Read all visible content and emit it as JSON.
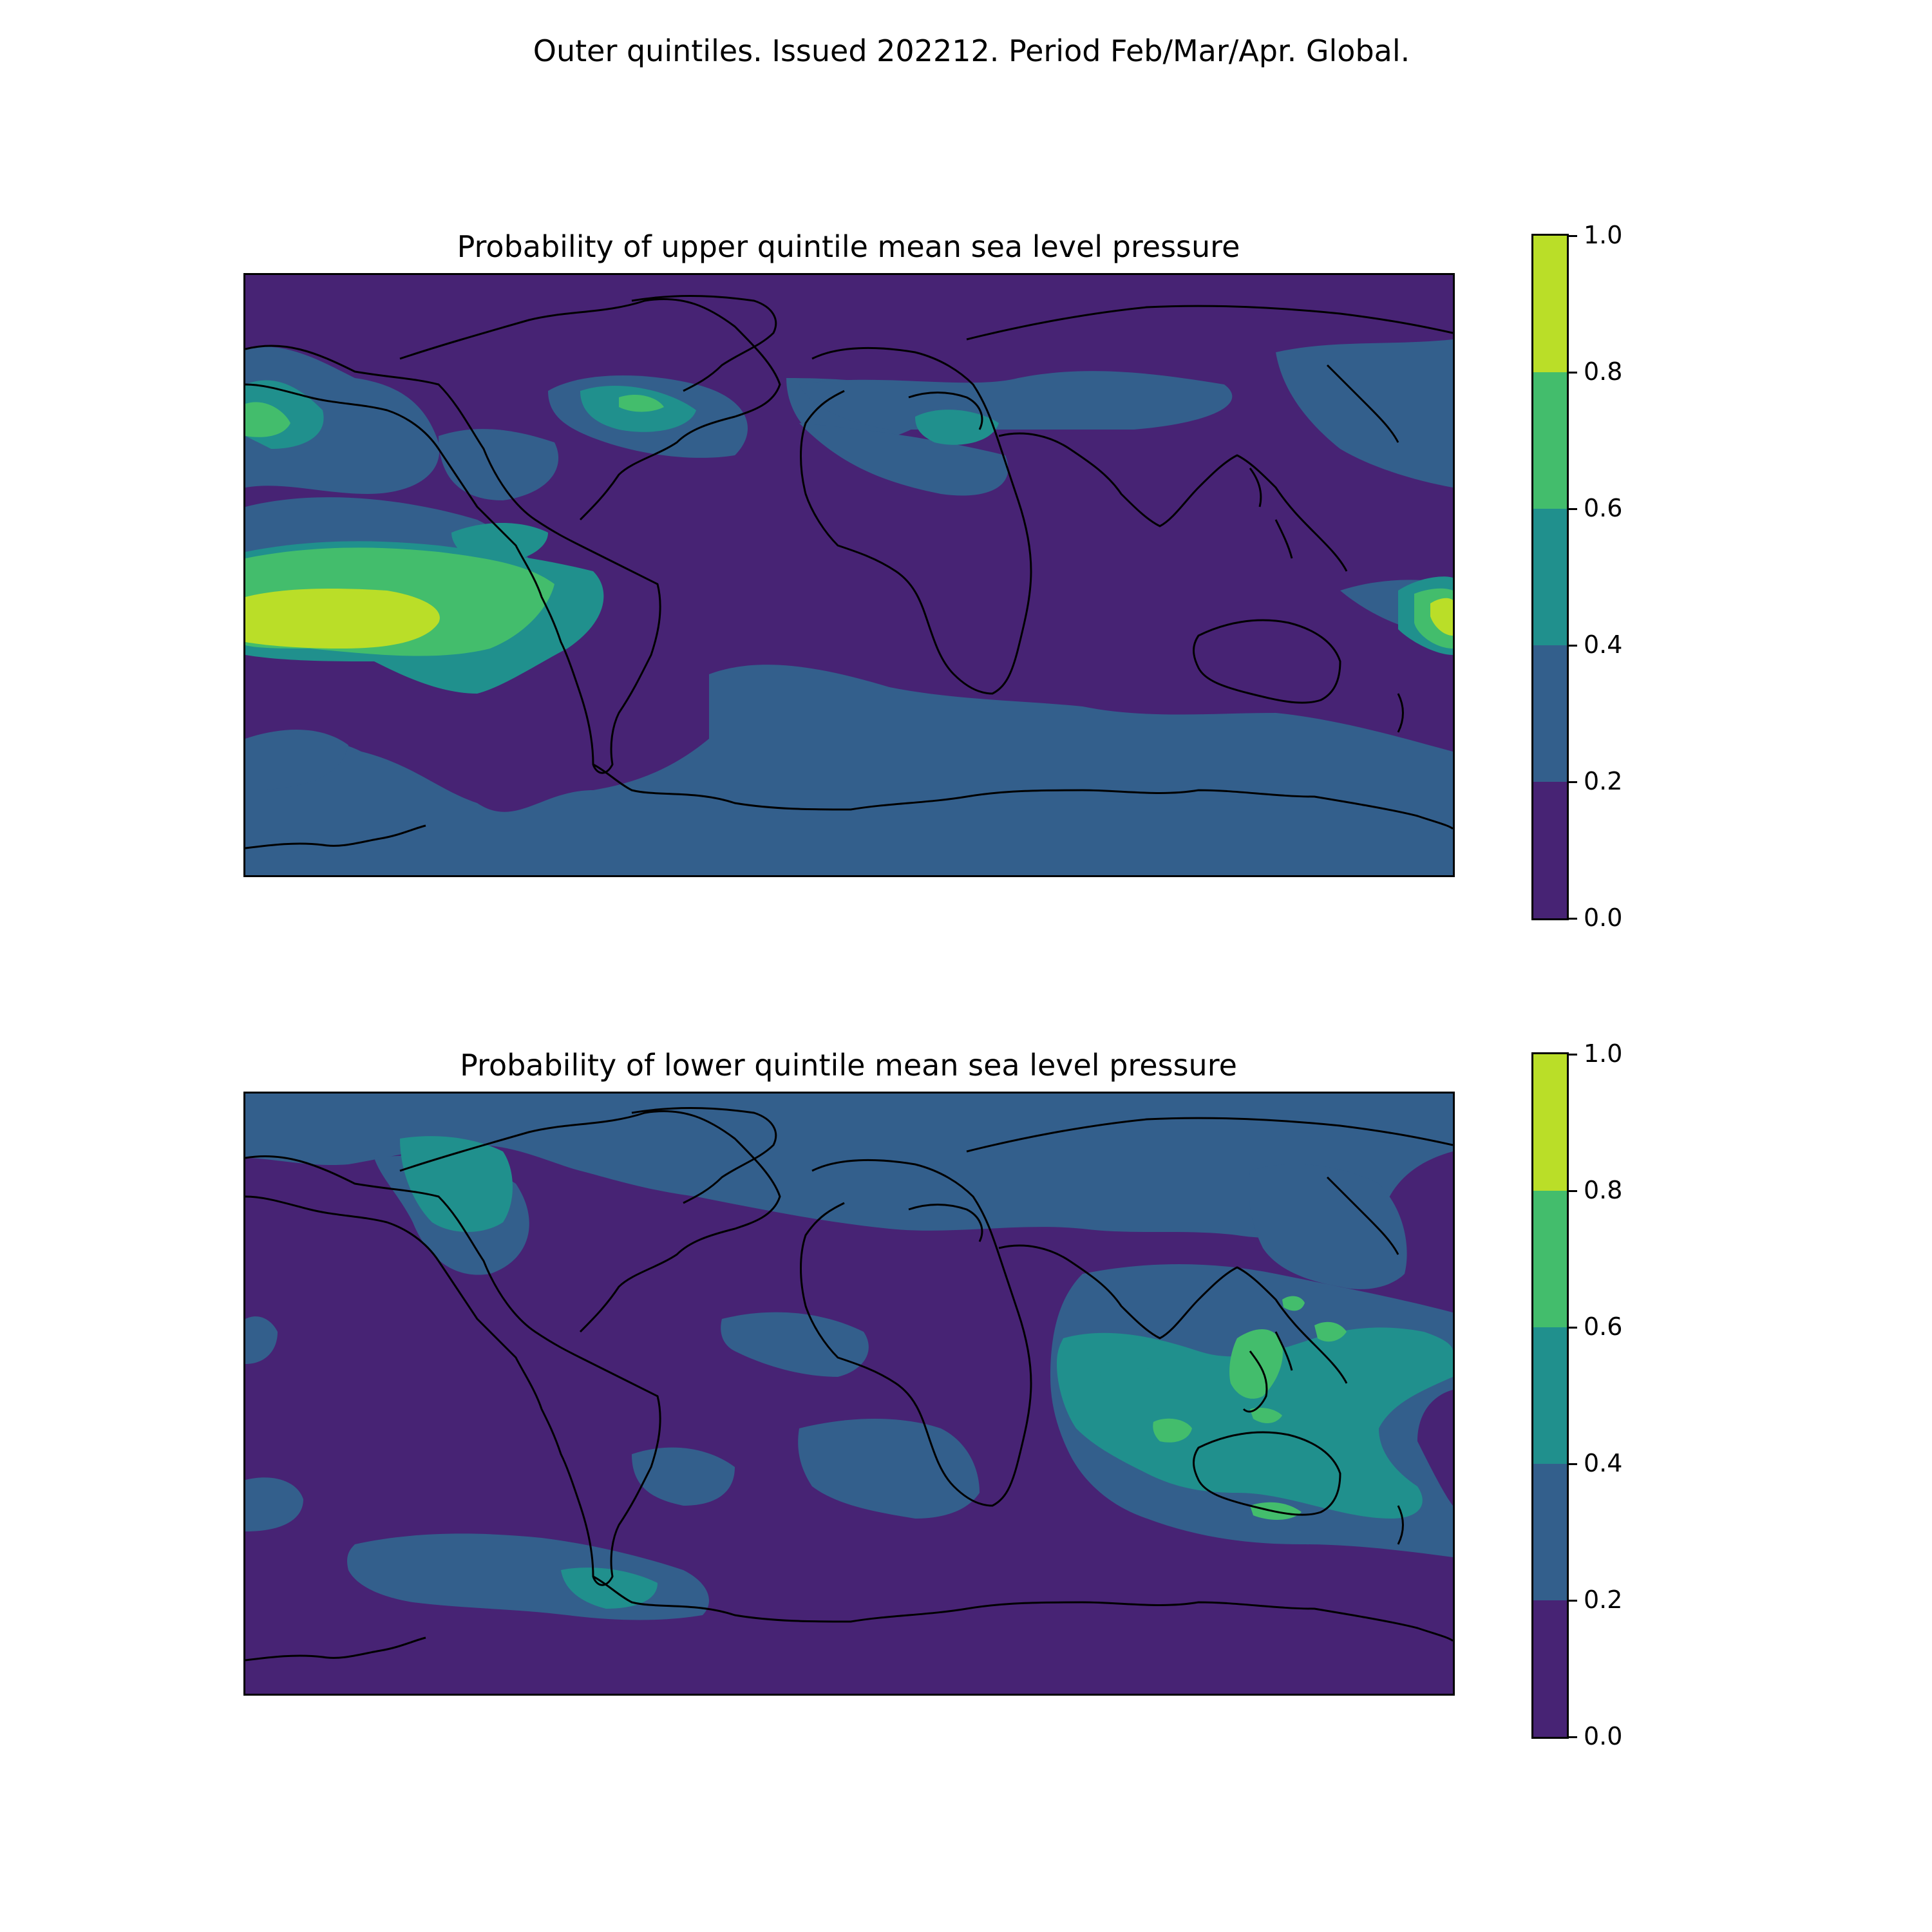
{
  "title": "Outer quintiles. Issued 202212. Period Feb/Mar/Apr. Global.",
  "panels": [
    {
      "title": "Probability of upper quintile mean sea level pressure",
      "colorbar": {
        "ticks": [
          "0.0",
          "0.2",
          "0.4",
          "0.6",
          "0.8",
          "1.0"
        ]
      }
    },
    {
      "title": "Probability of lower quintile mean sea level pressure",
      "colorbar": {
        "ticks": [
          "0.0",
          "0.2",
          "0.4",
          "0.6",
          "0.8",
          "1.0"
        ]
      }
    }
  ],
  "colors": {
    "bin_0.0_0.2": "#472374",
    "bin_0.2_0.4": "#335f8c",
    "bin_0.4_0.6": "#20908d",
    "bin_0.6_0.8": "#43bd6c",
    "bin_0.8_1.0": "#bade28",
    "coastline": "#000000"
  },
  "map_projection": "equirectangular, global",
  "chart_data": [
    {
      "type": "heatmap",
      "title": "Probability of upper quintile mean sea level pressure",
      "value_range": [
        0,
        1
      ],
      "bins": [
        0.0,
        0.2,
        0.4,
        0.6,
        0.8,
        1.0
      ],
      "notable_regions": [
        {
          "region": "central/eastern tropical Pacific",
          "level": "0.8-1.0"
        },
        {
          "region": "tropical Pacific surroundings",
          "level": "0.6-0.8"
        },
        {
          "region": "western tropical Pacific near dateline",
          "level": "0.8-1.0"
        },
        {
          "region": "northeast North America / NW Atlantic",
          "level": "0.4-0.6"
        },
        {
          "region": "Black Sea / Turkey",
          "level": "0.4-0.6"
        },
        {
          "region": "Southern Ocean / Antarctica",
          "level": "0.2-0.4"
        },
        {
          "region": "most continents",
          "level": "0.0-0.2"
        }
      ]
    },
    {
      "type": "heatmap",
      "title": "Probability of lower quintile mean sea level pressure",
      "value_range": [
        0,
        1
      ],
      "bins": [
        0.0,
        0.2,
        0.4,
        0.6,
        0.8,
        1.0
      ],
      "notable_regions": [
        {
          "region": "Maritime Continent / Indonesia",
          "level": "0.6-0.8"
        },
        {
          "region": "eastern Indian Ocean / northern Australia",
          "level": "0.4-0.6"
        },
        {
          "region": "western North Pacific",
          "level": "0.4-0.6"
        },
        {
          "region": "northern Canada",
          "level": "0.4-0.6"
        },
        {
          "region": "South Atlantic near Drake Passage",
          "level": "0.4-0.6"
        },
        {
          "region": "Arctic and North Atlantic",
          "level": "0.2-0.4"
        },
        {
          "region": "tropical east Pacific",
          "level": "0.0-0.2"
        }
      ]
    }
  ]
}
